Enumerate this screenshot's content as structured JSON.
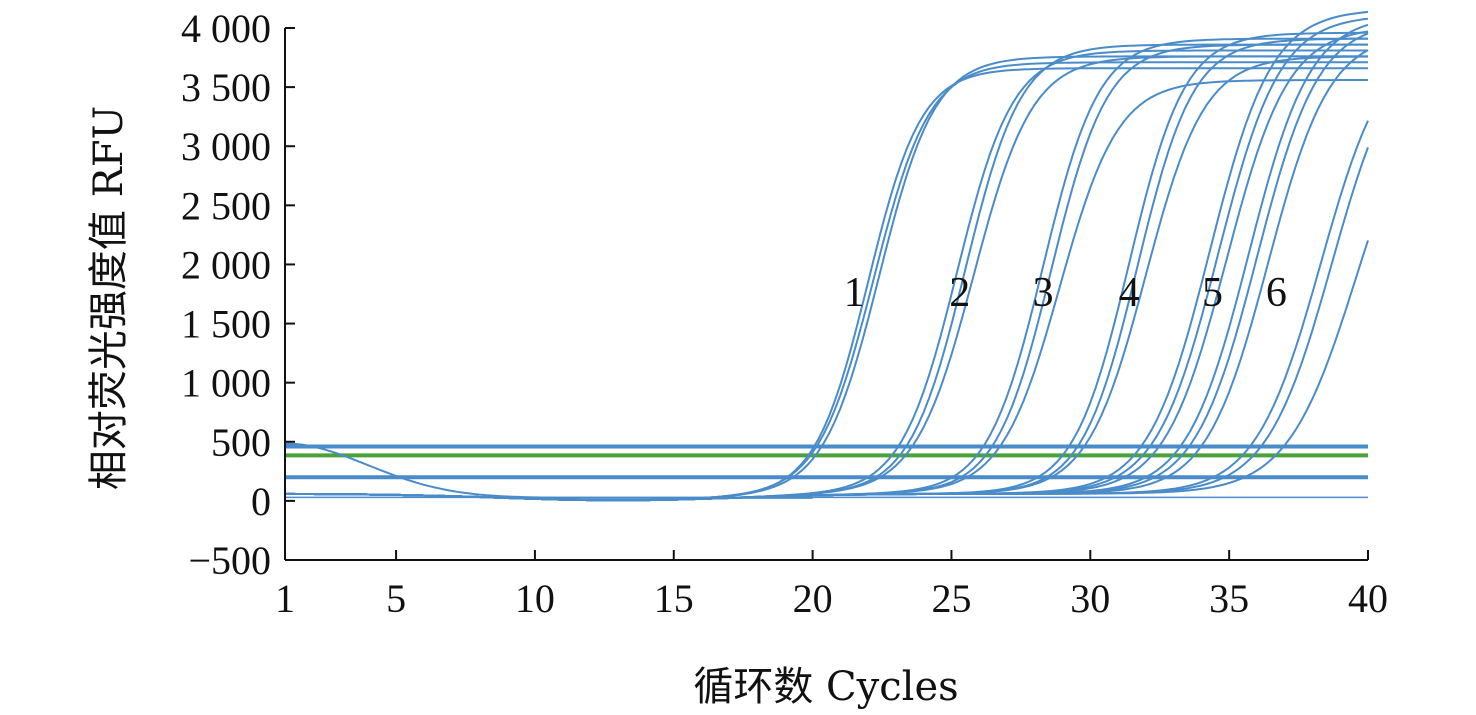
{
  "chart_data": {
    "type": "line",
    "xlabel": "循环数 Cycles",
    "ylabel": "相对荧光强度值 RFU",
    "xlim": [
      1,
      40
    ],
    "ylim": [
      -500,
      4000
    ],
    "x_ticks": [
      1,
      5,
      10,
      15,
      20,
      25,
      30,
      35,
      40
    ],
    "y_ticks": [
      -500,
      0,
      500,
      1000,
      1500,
      2000,
      2500,
      3000,
      3500,
      4000
    ],
    "y_tick_labels": [
      "−500",
      "0",
      "500",
      "1 000",
      "1 500",
      "2 000",
      "2 500",
      "3 000",
      "3 500",
      "4 000"
    ],
    "grid": false,
    "curve_color": "#4a8cc9",
    "threshold_color": "#4aa33a",
    "threshold": 385,
    "baseline_lines": [
      460,
      200
    ],
    "curve_labels": [
      {
        "text": "1",
        "x": 21.5,
        "y": 1650
      },
      {
        "text": "2",
        "x": 25.3,
        "y": 1650
      },
      {
        "text": "3",
        "x": 28.3,
        "y": 1650
      },
      {
        "text": "4",
        "x": 31.4,
        "y": 1650
      },
      {
        "text": "5",
        "x": 34.4,
        "y": 1650
      },
      {
        "text": "6",
        "x": 36.7,
        "y": 1650
      }
    ],
    "series": [
      {
        "group": "1",
        "ct": 22.0,
        "max": 3600,
        "slope": 1.05
      },
      {
        "group": "1",
        "ct": 22.2,
        "max": 3650,
        "slope": 1.0
      },
      {
        "group": "1",
        "ct": 22.4,
        "max": 3700,
        "slope": 1.0
      },
      {
        "group": "2",
        "ct": 25.2,
        "max": 3750,
        "slope": 1.0
      },
      {
        "group": "2",
        "ct": 25.5,
        "max": 3800,
        "slope": 1.0
      },
      {
        "group": "2",
        "ct": 25.8,
        "max": 3700,
        "slope": 0.95
      },
      {
        "group": "3",
        "ct": 28.3,
        "max": 3850,
        "slope": 1.0
      },
      {
        "group": "3",
        "ct": 28.6,
        "max": 3800,
        "slope": 1.0
      },
      {
        "group": "3",
        "ct": 28.9,
        "max": 3500,
        "slope": 0.95
      },
      {
        "group": "4",
        "ct": 31.4,
        "max": 3900,
        "slope": 1.0
      },
      {
        "group": "4",
        "ct": 31.7,
        "max": 3850,
        "slope": 1.0
      },
      {
        "group": "4",
        "ct": 32.0,
        "max": 3700,
        "slope": 0.95
      },
      {
        "group": "5",
        "ct": 34.3,
        "max": 4100,
        "slope": 0.9
      },
      {
        "group": "5",
        "ct": 34.6,
        "max": 4050,
        "slope": 0.9
      },
      {
        "group": "5",
        "ct": 34.9,
        "max": 3950,
        "slope": 0.9
      },
      {
        "group": "6",
        "ct": 35.7,
        "max": 4050,
        "slope": 0.9
      },
      {
        "group": "6",
        "ct": 36.0,
        "max": 4000,
        "slope": 0.9
      },
      {
        "group": "6",
        "ct": 36.4,
        "max": 3900,
        "slope": 0.9
      },
      {
        "group": "7",
        "ct": 38.3,
        "max": 3900,
        "slope": 0.85
      },
      {
        "group": "7",
        "ct": 38.7,
        "max": 3900,
        "slope": 0.85
      },
      {
        "group": "7",
        "ct": 39.6,
        "max": 3700,
        "slope": 0.8
      }
    ]
  }
}
